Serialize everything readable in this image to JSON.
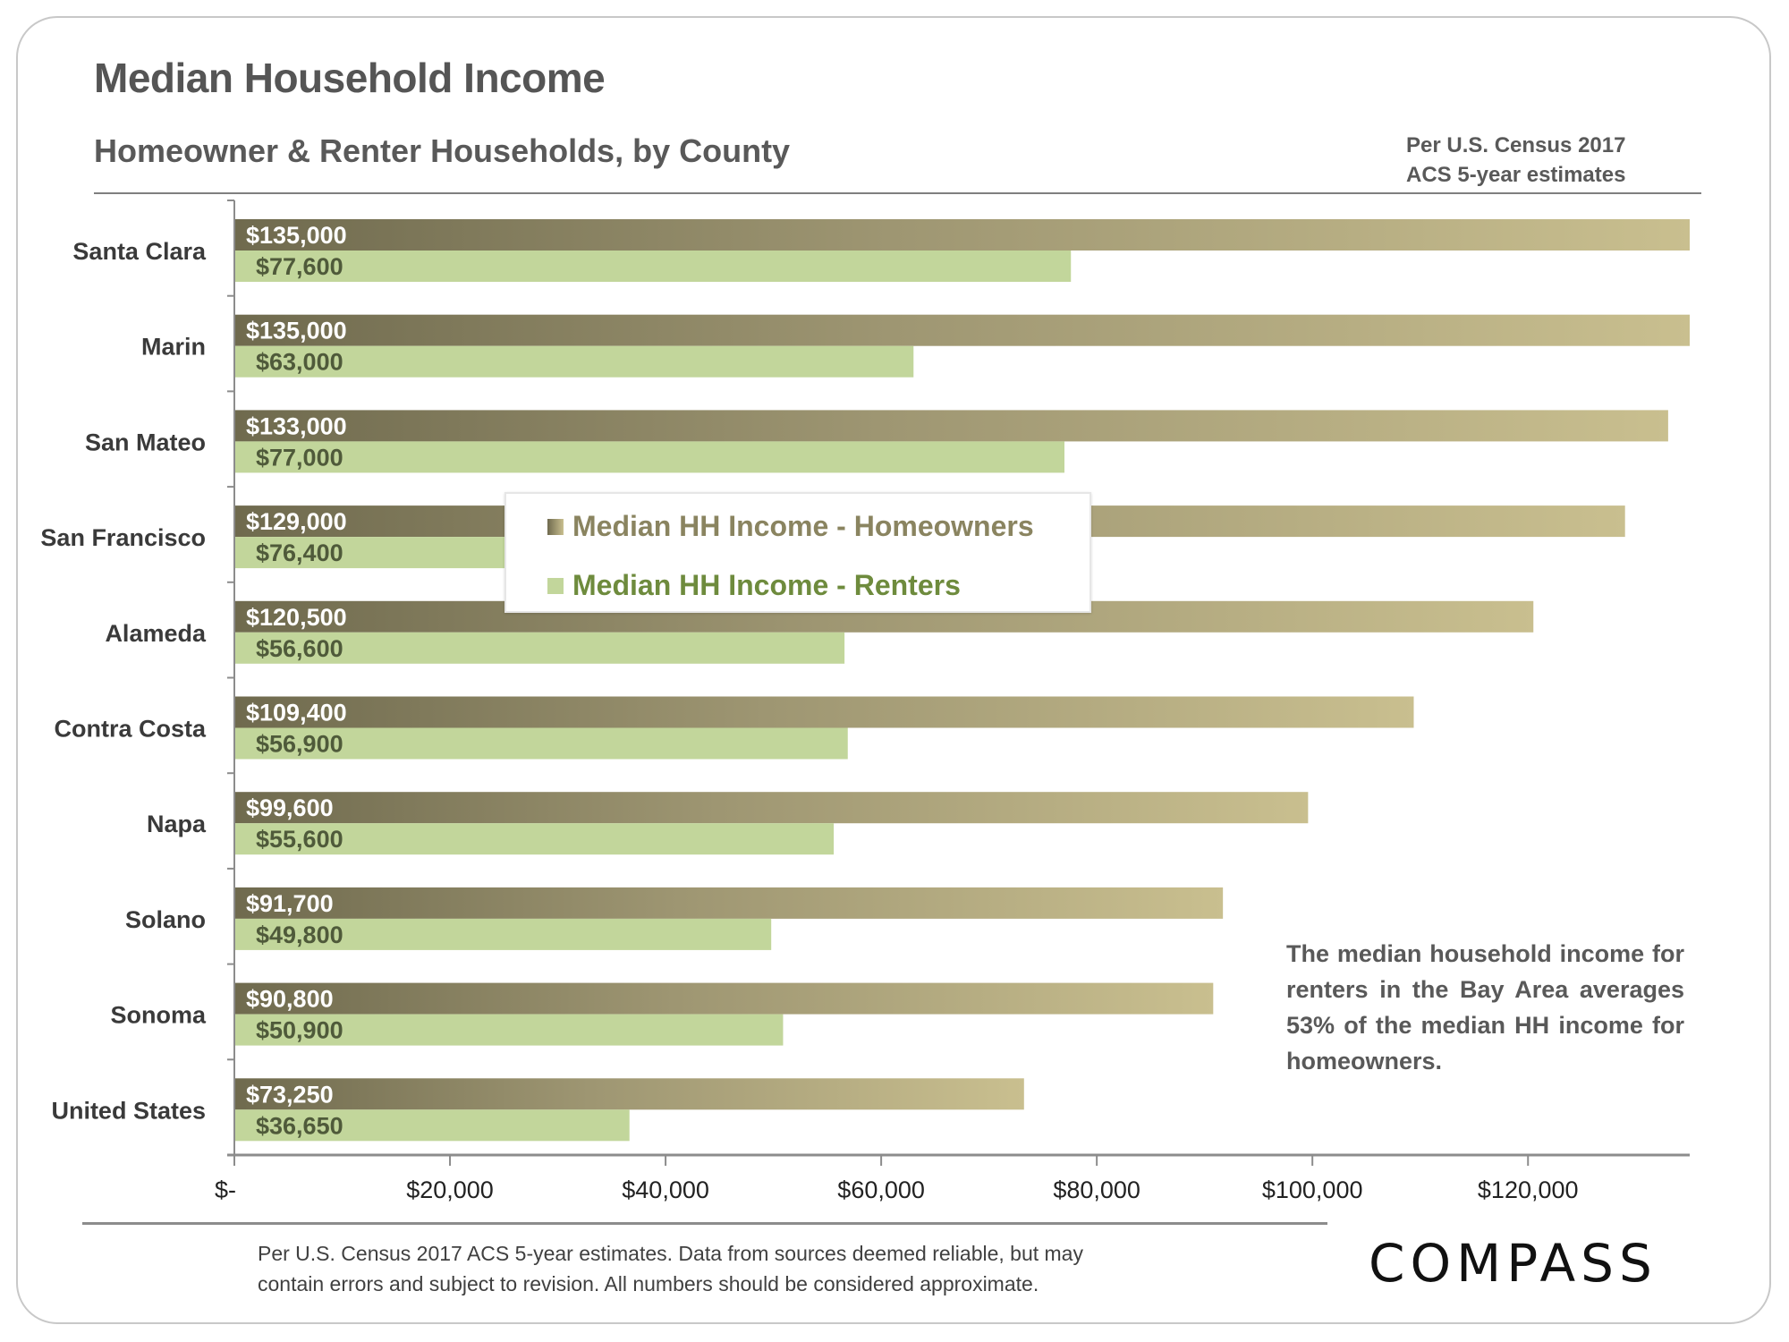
{
  "header": {
    "title": "Median Household Income",
    "subtitle": "Homeowner & Renter Households,  by County",
    "source_note_line1": "Per U.S. Census 2017",
    "source_note_line2": "ACS 5-year estimates"
  },
  "legend": {
    "homeowners": "Median HH Income - Homeowners",
    "renters": "Median HH Income - Renters"
  },
  "callout": "The median household income for renters in the Bay Area averages 53% of the median HH income for homeowners.",
  "footer": {
    "line1": "Per U.S. Census 2017 ACS 5-year estimates. Data from sources deemed reliable, but may",
    "line2": "contain errors and subject to revision.  All numbers should  be considered approximate."
  },
  "logo": "COMPASS",
  "colors": {
    "homeowner_start": "#6f6a4e",
    "homeowner_end": "#c9bf8f",
    "renter": "#c2d69b",
    "renter_label": "#4f5a3a"
  },
  "chart_data": {
    "type": "bar",
    "orientation": "horizontal",
    "title": "Median Household Income",
    "subtitle": "Homeowner & Renter Households, by County",
    "xlabel": "",
    "ylabel": "",
    "xlim": [
      0,
      135000
    ],
    "x_ticks": [
      0,
      20000,
      40000,
      60000,
      80000,
      100000,
      120000
    ],
    "x_tick_labels": [
      "$-",
      "$20,000",
      "$40,000",
      "$60,000",
      "$80,000",
      "$100,000",
      "$120,000"
    ],
    "grid": false,
    "legend_position": "center",
    "categories": [
      "Santa Clara",
      "Marin",
      "San Mateo",
      "San Francisco",
      "Alameda",
      "Contra Costa",
      "Napa",
      "Solano",
      "Sonoma",
      "United States"
    ],
    "series": [
      {
        "name": "Median HH Income - Homeowners",
        "values": [
          135000,
          135000,
          133000,
          129000,
          120500,
          109400,
          99600,
          91700,
          90800,
          73250
        ],
        "labels": [
          "$135,000",
          "$135,000",
          "$133,000",
          "$129,000",
          "$120,500",
          "$109,400",
          "$99,600",
          "$91,700",
          "$90,800",
          "$73,250"
        ]
      },
      {
        "name": "Median HH Income - Renters",
        "values": [
          77600,
          63000,
          77000,
          76400,
          56600,
          56900,
          55600,
          49800,
          50900,
          36650
        ],
        "labels": [
          "$77,600",
          "$63,000",
          "$77,000",
          "$76,400",
          "$56,600",
          "$56,900",
          "$55,600",
          "$49,800",
          "$50,900",
          "$36,650"
        ]
      }
    ]
  }
}
